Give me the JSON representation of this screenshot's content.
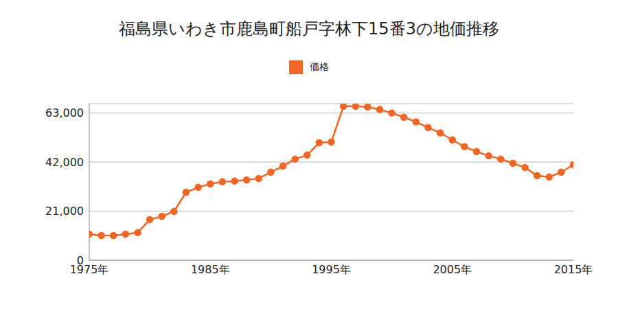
{
  "chart_data": {
    "type": "line",
    "title": "福島県いわき市鹿島町船戸字林下15番3の地価推移",
    "x": [
      1975,
      1976,
      1977,
      1978,
      1979,
      1980,
      1981,
      1982,
      1983,
      1984,
      1985,
      1986,
      1987,
      1988,
      1989,
      1990,
      1991,
      1992,
      1993,
      1994,
      1995,
      1996,
      1997,
      1998,
      1999,
      2000,
      2001,
      2002,
      2003,
      2004,
      2005,
      2006,
      2007,
      2008,
      2009,
      2010,
      2011,
      2012,
      2013,
      2014,
      2015
    ],
    "series": [
      {
        "name": "価格",
        "color": "#f26522",
        "marker": "circle",
        "values": [
          11200,
          10600,
          10600,
          11200,
          11800,
          17400,
          18800,
          20900,
          29100,
          31200,
          32700,
          33600,
          33900,
          34400,
          35000,
          37700,
          40300,
          43300,
          45000,
          50300,
          50600,
          65900,
          65900,
          65600,
          64500,
          63000,
          61200,
          59200,
          56800,
          54500,
          51500,
          48600,
          46500,
          44700,
          43300,
          41500,
          39700,
          36200,
          35600,
          37700,
          40900
        ]
      }
    ],
    "xlim": [
      1975,
      2015
    ],
    "xticks": [
      {
        "value": 1975,
        "label": "1975年"
      },
      {
        "value": 1985,
        "label": "1985年"
      },
      {
        "value": 1995,
        "label": "1995年"
      },
      {
        "value": 2005,
        "label": "2005年"
      },
      {
        "value": 2015,
        "label": "2015年"
      }
    ],
    "ylim": [
      0,
      67000
    ],
    "yticks": [
      0,
      {
        "value": 21000,
        "label": "21,000"
      },
      {
        "value": 42000,
        "label": "42,000"
      },
      {
        "value": 63000,
        "label": "63,000"
      }
    ],
    "grid": true,
    "legend": "top"
  }
}
